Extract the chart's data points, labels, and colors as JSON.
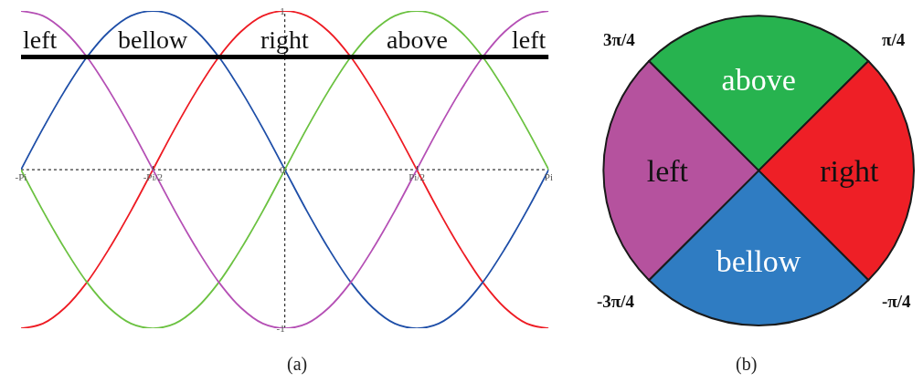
{
  "chart_data": [
    {
      "type": "line",
      "x": [
        -3.1416,
        -2.8798,
        -2.618,
        -2.3562,
        -2.0944,
        -1.8326,
        -1.5708,
        -1.309,
        -1.0472,
        -0.7854,
        -0.5236,
        -0.2618,
        0,
        0.2618,
        0.5236,
        0.7854,
        1.0472,
        1.309,
        1.5708,
        1.8326,
        2.0944,
        2.3562,
        2.618,
        2.8798,
        3.1416
      ],
      "series": [
        {
          "color": "#ee1c24",
          "values": [
            -1,
            -0.97,
            -0.87,
            -0.71,
            -0.5,
            -0.26,
            0,
            0.26,
            0.5,
            0.71,
            0.87,
            0.97,
            1,
            0.97,
            0.87,
            0.71,
            0.5,
            0.26,
            0,
            -0.26,
            -0.5,
            -0.71,
            -0.87,
            -0.97,
            -1
          ]
        },
        {
          "color": "#1f4fa8",
          "values": [
            0,
            0.26,
            0.5,
            0.71,
            0.87,
            0.97,
            1,
            0.97,
            0.87,
            0.71,
            0.5,
            0.26,
            0,
            -0.26,
            -0.5,
            -0.71,
            -0.87,
            -0.97,
            -1,
            -0.97,
            -0.87,
            -0.71,
            -0.5,
            -0.26,
            0
          ]
        },
        {
          "color": "#6cc242",
          "values": [
            0,
            -0.26,
            -0.5,
            -0.71,
            -0.87,
            -0.97,
            -1,
            -0.97,
            -0.87,
            -0.71,
            -0.5,
            -0.26,
            0,
            0.26,
            0.5,
            0.71,
            0.87,
            0.97,
            1,
            0.97,
            0.87,
            0.71,
            0.5,
            0.26,
            0
          ]
        },
        {
          "color": "#b550b5",
          "values": [
            1,
            0.97,
            0.87,
            0.71,
            0.5,
            0.26,
            0,
            -0.26,
            -0.5,
            -0.71,
            -0.87,
            -0.97,
            -1,
            -0.97,
            -0.87,
            -0.71,
            -0.5,
            -0.26,
            0,
            0.26,
            0.5,
            0.71,
            0.87,
            0.97,
            1
          ]
        }
      ],
      "xlim": [
        -3.1416,
        3.1416
      ],
      "xticks": [
        {
          "value": -3.1416,
          "label": "-Pi"
        },
        {
          "value": -1.5708,
          "label": "-Pi/2"
        },
        {
          "value": 1.5708,
          "label": "Pi/2"
        },
        {
          "value": 3.1416,
          "label": "Pi"
        }
      ],
      "ylim": [
        -1,
        1
      ],
      "yticks": [
        -1,
        0,
        1
      ],
      "ref_lines": [
        {
          "axis": "y",
          "value": 0.71,
          "color": "#000000",
          "line_style": "solid"
        },
        {
          "axis": "y",
          "value": 0,
          "color": "#000000",
          "line_style": "dotted"
        },
        {
          "axis": "x",
          "value": 0,
          "color": "#000000",
          "line_style": "dotted"
        }
      ],
      "annotations": [
        "left",
        "bellow",
        "right",
        "above",
        "left",
        "(a)"
      ],
      "grid": false,
      "marker": "none",
      "line_style": "solid"
    },
    {
      "type": "pie",
      "categories": [
        "above",
        "right",
        "bellow",
        "left"
      ],
      "values": [
        25,
        25,
        25,
        25
      ],
      "colors": [
        "#27b34f",
        "#ee1f26",
        "#2f7cc2",
        "#b5529e"
      ],
      "annotations": [
        "3π/4",
        "π/4",
        "-π/4",
        "-3π/4",
        "(b)"
      ]
    }
  ]
}
